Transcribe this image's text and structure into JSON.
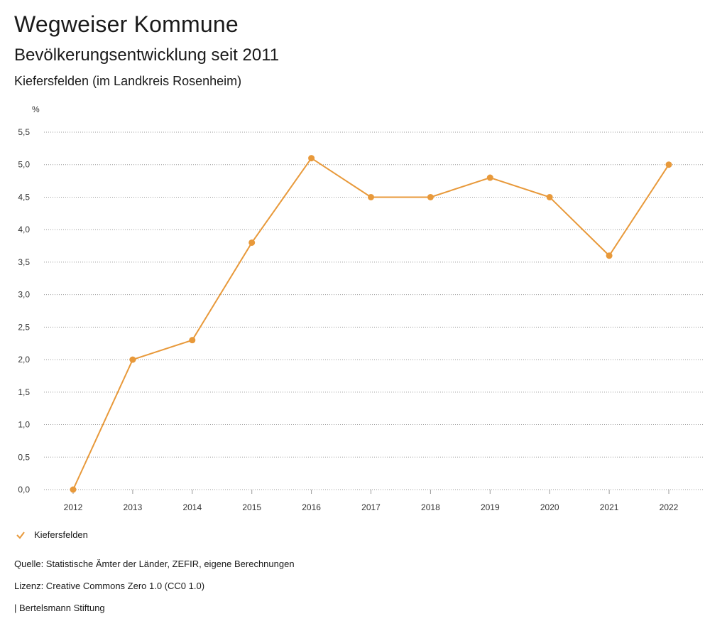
{
  "header": {
    "title": "Wegweiser Kommune",
    "subtitle": "Bevölkerungsentwicklung seit 2011",
    "region": "Kiefersfelden (im Landkreis Rosenheim)"
  },
  "chart_data": {
    "type": "line",
    "title": "Bevölkerungsentwicklung seit 2011",
    "ylabel": "%",
    "xlabel": "",
    "ylim": [
      0,
      5.5
    ],
    "grid": true,
    "categories": [
      "2012",
      "2013",
      "2014",
      "2015",
      "2016",
      "2017",
      "2018",
      "2019",
      "2020",
      "2021",
      "2022"
    ],
    "y_ticks": [
      "0,0",
      "0,5",
      "1,0",
      "1,5",
      "2,0",
      "2,5",
      "3,0",
      "3,5",
      "4,0",
      "4,5",
      "5,0",
      "5,5"
    ],
    "series": [
      {
        "name": "Kiefersfelden",
        "color": "#e8993a",
        "values": [
          0.0,
          2.0,
          2.3,
          3.8,
          5.1,
          4.5,
          4.5,
          4.8,
          4.5,
          3.6,
          5.0
        ]
      }
    ],
    "legend_position": "bottom-left"
  },
  "legend": {
    "label": "Kiefersfelden"
  },
  "footer": {
    "source": "Quelle: Statistische Ämter der Länder, ZEFIR, eigene Berechnungen",
    "license": "Lizenz: Creative Commons Zero 1.0 (CC0 1.0)",
    "publisher": "| Bertelsmann Stiftung"
  }
}
